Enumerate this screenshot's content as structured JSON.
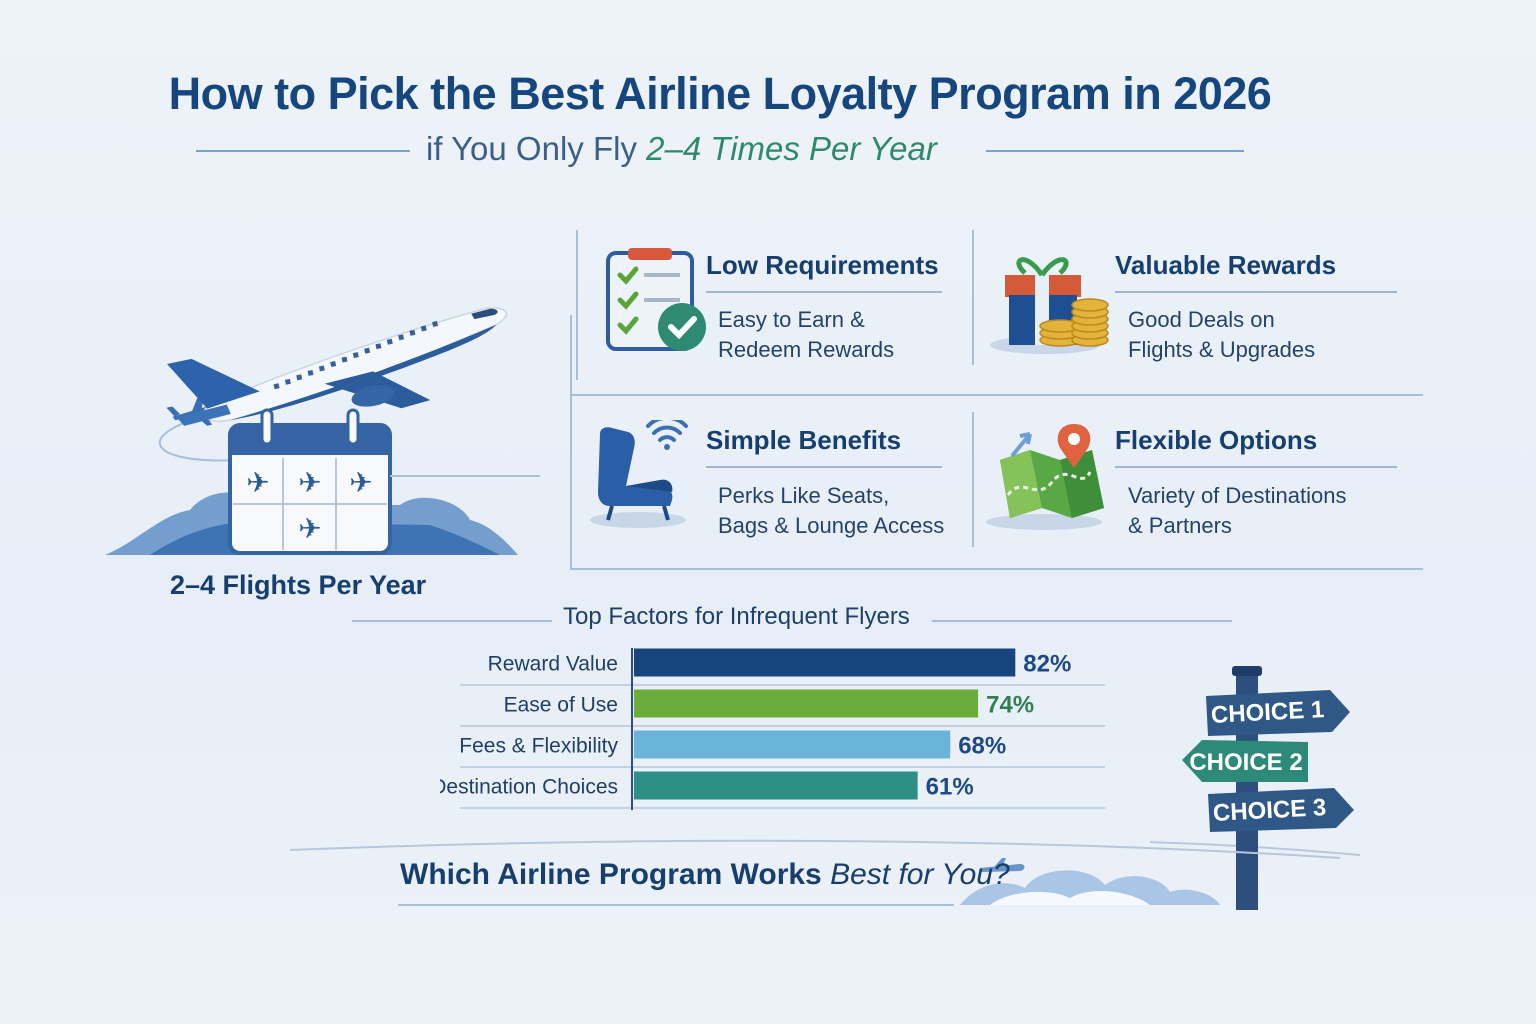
{
  "header": {
    "title": "How to Pick the Best Airline Loyalty Program in 2026",
    "subtitle_prefix": "if You Only Fly ",
    "subtitle_emphasis": "2–4 Times Per Year"
  },
  "left_panel": {
    "label": "2–4 Flights Per Year"
  },
  "features": [
    {
      "title": "Low Requirements",
      "line1": "Easy to Earn &",
      "line2": "Redeem Rewards",
      "icon": "checklist-icon"
    },
    {
      "title": "Valuable Rewards",
      "line1": "Good Deals on",
      "line2": "Flights & Upgrades",
      "icon": "gift-coins-icon"
    },
    {
      "title": "Simple Benefits",
      "line1": "Perks Like Seats,",
      "line2": "Bags & Lounge Access",
      "icon": "seat-wifi-icon"
    },
    {
      "title": "Flexible Options",
      "line1": "Variety of Destinations",
      "line2": "& Partners",
      "icon": "map-pin-icon"
    }
  ],
  "chart_data": {
    "type": "bar",
    "orientation": "horizontal",
    "title": "Top Factors for Infrequent Flyers",
    "categories": [
      "Reward Value",
      "Ease of Use",
      "Fees & Flexibility",
      "Destination Choices"
    ],
    "values": [
      82,
      74,
      68,
      61
    ],
    "value_labels": [
      "82%",
      "74%",
      "68%",
      "61%"
    ],
    "colors": [
      "#17467f",
      "#6aad3a",
      "#6ab4d9",
      "#2e8f86"
    ],
    "xlim": [
      0,
      100
    ],
    "grid": false
  },
  "signpost": {
    "choices": [
      "CHOICE 1",
      "CHOICE 2",
      "CHOICE 3"
    ],
    "colors": [
      "#2f5887",
      "#2d8a7a",
      "#2f5887"
    ]
  },
  "footer": {
    "question_prefix": "Which Airline Program Works ",
    "question_emphasis": "Best for You?"
  }
}
